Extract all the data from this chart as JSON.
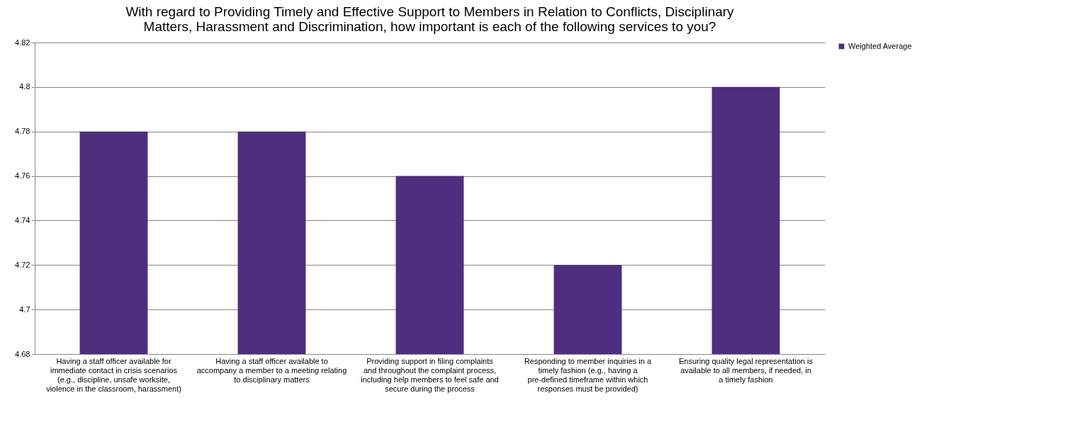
{
  "chart_data": {
    "type": "bar",
    "title": "With regard to Providing Timely and Effective Support to Members in Relation to Conflicts, Disciplinary Matters, Harassment and Discrimination, how important is each of the following services to you?",
    "categories": [
      "Having a staff officer available for immediate contact in crisis scenarios (e.g., discipline, unsafe worksite, violence in the classroom, harassment)",
      "Having a staff officer available to accompany a member to a meeting relating to disciplinary matters",
      "Providing support in filing complaints and throughout the complaint process, including help members to feel safe and secure during the process",
      "Responding to member inquiries in a timely fashion (e.g., having a pre-defined timeframe within which responses must be provided)",
      "Ensuring quality legal representation is available to all members, if needed, in a timely fashion"
    ],
    "series": [
      {
        "name": "Weighted Average",
        "color": "#4f2d7f",
        "values": [
          4.78,
          4.78,
          4.76,
          4.72,
          4.8
        ]
      }
    ],
    "ylim": [
      4.68,
      4.82
    ],
    "yticks": [
      4.68,
      4.7,
      4.72,
      4.74,
      4.76,
      4.78,
      4.8,
      4.82
    ],
    "grid": "y",
    "legend": "right"
  }
}
